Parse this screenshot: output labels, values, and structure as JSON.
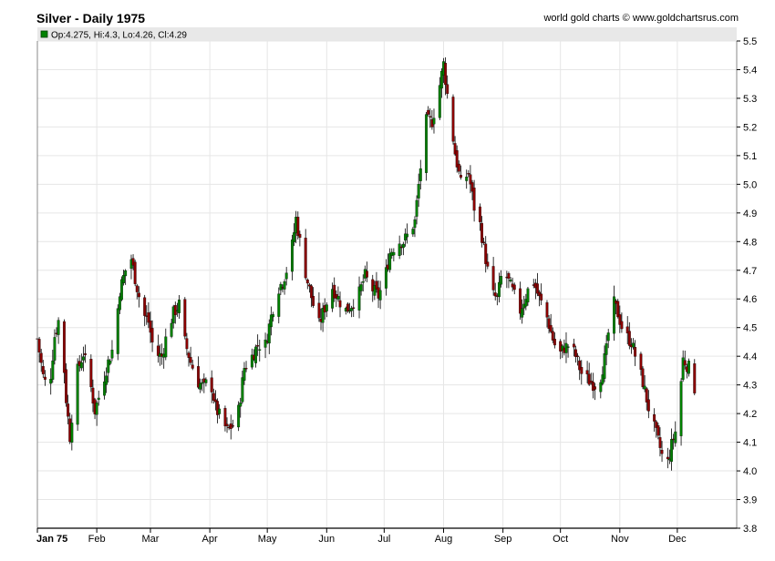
{
  "header": {
    "title": "Silver - Daily 1975",
    "credit": "world gold charts © www.goldchartsrus.com"
  },
  "legend": {
    "text": "Op:4.275, Hi:4.3, Lo:4.26, Cl:4.29",
    "swatch_color": "#008000"
  },
  "colors": {
    "up": "#008000",
    "down": "#8b0000",
    "wick": "#000000",
    "grid": "#e6e6e6",
    "legend_bg": "#e8e8e8"
  },
  "chart_data": {
    "type": "candlestick",
    "title": "Silver - Daily 1975",
    "ylim": [
      3.8,
      5.5
    ],
    "y_ticks": [
      3.8,
      3.9,
      4.0,
      4.1,
      4.2,
      4.3,
      4.4,
      4.5,
      4.6,
      4.7,
      4.8,
      4.9,
      5.0,
      5.1,
      5.2,
      5.3,
      5.4,
      5.5
    ],
    "x_range": [
      0,
      365
    ],
    "x_ticks": [
      {
        "label": "Jan 75",
        "day": 0
      },
      {
        "label": "Feb",
        "day": 31
      },
      {
        "label": "Mar",
        "day": 59
      },
      {
        "label": "Apr",
        "day": 90
      },
      {
        "label": "May",
        "day": 120
      },
      {
        "label": "Jun",
        "day": 151
      },
      {
        "label": "Jul",
        "day": 181
      },
      {
        "label": "Aug",
        "day": 212
      },
      {
        "label": "Sep",
        "day": 243
      },
      {
        "label": "Oct",
        "day": 273
      },
      {
        "label": "Nov",
        "day": 304
      },
      {
        "label": "Dec",
        "day": 334
      }
    ],
    "close_path": [
      [
        0,
        4.46
      ],
      [
        3,
        4.33
      ],
      [
        6,
        4.27
      ],
      [
        9,
        4.47
      ],
      [
        12,
        4.55
      ],
      [
        15,
        4.25
      ],
      [
        17,
        4.12
      ],
      [
        20,
        4.33
      ],
      [
        24,
        4.41
      ],
      [
        27,
        4.33
      ],
      [
        30,
        4.21
      ],
      [
        33,
        4.28
      ],
      [
        37,
        4.38
      ],
      [
        40,
        4.44
      ],
      [
        43,
        4.63
      ],
      [
        46,
        4.7
      ],
      [
        49,
        4.74
      ],
      [
        52,
        4.64
      ],
      [
        55,
        4.55
      ],
      [
        58,
        4.52
      ],
      [
        61,
        4.41
      ],
      [
        65,
        4.4
      ],
      [
        68,
        4.49
      ],
      [
        71,
        4.55
      ],
      [
        74,
        4.58
      ],
      [
        77,
        4.45
      ],
      [
        80,
        4.38
      ],
      [
        84,
        4.31
      ],
      [
        87,
        4.29
      ],
      [
        90,
        4.33
      ],
      [
        93,
        4.22
      ],
      [
        96,
        4.18
      ],
      [
        99,
        4.14
      ],
      [
        102,
        4.16
      ],
      [
        105,
        4.21
      ],
      [
        108,
        4.36
      ],
      [
        112,
        4.4
      ],
      [
        115,
        4.44
      ],
      [
        119,
        4.44
      ],
      [
        122,
        4.54
      ],
      [
        125,
        4.63
      ],
      [
        128,
        4.66
      ],
      [
        132,
        4.74
      ],
      [
        135,
        4.88
      ],
      [
        138,
        4.76
      ],
      [
        141,
        4.66
      ],
      [
        144,
        4.58
      ],
      [
        147,
        4.51
      ],
      [
        150,
        4.57
      ],
      [
        154,
        4.64
      ],
      [
        158,
        4.59
      ],
      [
        161,
        4.56
      ],
      [
        164,
        4.58
      ],
      [
        168,
        4.62
      ],
      [
        171,
        4.68
      ],
      [
        174,
        4.64
      ],
      [
        178,
        4.61
      ],
      [
        181,
        4.66
      ],
      [
        184,
        4.76
      ],
      [
        188,
        4.8
      ],
      [
        191,
        4.8
      ],
      [
        194,
        4.83
      ],
      [
        197,
        4.87
      ],
      [
        200,
        5.06
      ],
      [
        203,
        5.22
      ],
      [
        206,
        5.22
      ],
      [
        209,
        5.31
      ],
      [
        212,
        5.42
      ],
      [
        215,
        5.26
      ],
      [
        218,
        5.11
      ],
      [
        221,
        5.0
      ],
      [
        225,
        5.04
      ],
      [
        228,
        4.92
      ],
      [
        231,
        4.86
      ],
      [
        234,
        4.74
      ],
      [
        237,
        4.62
      ],
      [
        240,
        4.6
      ],
      [
        243,
        4.71
      ],
      [
        246,
        4.66
      ],
      [
        249,
        4.61
      ],
      [
        252,
        4.56
      ],
      [
        256,
        4.63
      ],
      [
        259,
        4.66
      ],
      [
        262,
        4.6
      ],
      [
        265,
        4.56
      ],
      [
        269,
        4.46
      ],
      [
        272,
        4.4
      ],
      [
        275,
        4.43
      ],
      [
        278,
        4.44
      ],
      [
        281,
        4.4
      ],
      [
        284,
        4.34
      ],
      [
        287,
        4.32
      ],
      [
        291,
        4.3
      ],
      [
        294,
        4.33
      ],
      [
        297,
        4.42
      ],
      [
        300,
        4.6
      ],
      [
        303,
        4.55
      ],
      [
        306,
        4.48
      ],
      [
        310,
        4.45
      ],
      [
        313,
        4.38
      ],
      [
        316,
        4.31
      ],
      [
        319,
        4.22
      ],
      [
        322,
        4.15
      ],
      [
        325,
        4.08
      ],
      [
        328,
        4.0
      ],
      [
        331,
        4.09
      ],
      [
        334,
        4.16
      ],
      [
        337,
        4.39
      ],
      [
        340,
        4.36
      ],
      [
        343,
        4.29
      ]
    ]
  }
}
